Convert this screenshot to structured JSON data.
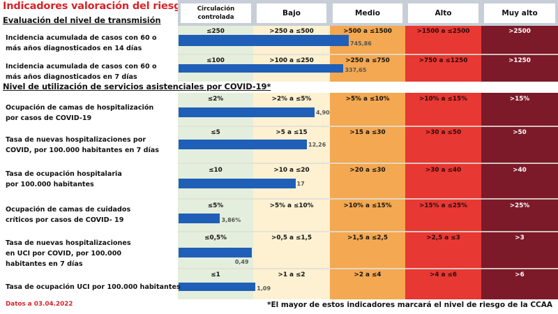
{
  "title": "Indicadores valoración del riesgo",
  "colors": {
    "circulacion": "#e4eedc",
    "bajo": "#fdf1d2",
    "medio": "#f3a851",
    "alto": "#e73833",
    "muy_alto": "#7c1a29",
    "bar": "#1f5fb7",
    "title": "#d8232a"
  },
  "headers": [
    "Circulación controlada",
    "Bajo",
    "Medio",
    "Alto",
    "Muy alto"
  ],
  "sections": [
    {
      "title": "Evaluación del nivel de transmisión"
    },
    {
      "title": "Nivel de utilización de servicios  asistenciales por COVID-19*"
    }
  ],
  "chart_data": {
    "type": "bar",
    "title": "Indicadores valoración del riesgo",
    "levels": [
      "Circulación controlada",
      "Bajo",
      "Medio",
      "Alto",
      "Muy alto"
    ],
    "rows": [
      {
        "section": 0,
        "label": "Incidencia acumulada de casos con 60 o más años diagnosticados en 14 días",
        "thresholds": [
          "≤250",
          ">250 a ≤500",
          ">500 a ≤1500",
          ">1500 a ≤2500",
          ">2500"
        ],
        "value": 745.86,
        "value_label": "745,86",
        "level_fraction": 2.25
      },
      {
        "section": 0,
        "label": "Incidencia acumulada de casos con 60 o más años diagnosticados en 7 días",
        "thresholds": [
          "≤100",
          ">100 a ≤250",
          ">250 a ≤750",
          ">750 a ≤1250",
          ">1250"
        ],
        "value": 337.65,
        "value_label": "337,65",
        "level_fraction": 2.18
      },
      {
        "section": 1,
        "label": "Ocupación de camas de hospitalización por casos de COVID-19",
        "thresholds": [
          "≤2%",
          ">2% a ≤5%",
          ">5% a ≤10%",
          ">10% a ≤15%",
          ">15%"
        ],
        "value": 4.9,
        "value_label": "4,90",
        "level_fraction": 1.8
      },
      {
        "section": 1,
        "label": "Tasa de nuevas hospitalizaciones por COVID, por 100.000 habitantes en 7 días",
        "thresholds": [
          "≤5",
          ">5 a ≤15",
          ">15 a ≤30",
          ">30 a ≤50",
          ">50"
        ],
        "value": 12.26,
        "value_label": "12,26",
        "level_fraction": 1.7
      },
      {
        "section": 1,
        "label": "Tasa de ocupación hospitalaria por 100.000 habitantes",
        "thresholds": [
          "≤10",
          ">10 a ≤20",
          ">20 a ≤30",
          ">30 a ≤40",
          ">40"
        ],
        "value": 17,
        "value_label": "17",
        "level_fraction": 1.55
      },
      {
        "section": 1,
        "label": "Ocupación de camas de cuidados críticos por casos de COVID- 19",
        "thresholds": [
          "≤5%",
          ">5% a ≤10%",
          ">10% a ≤15%",
          ">15% a ≤25%",
          ">25%"
        ],
        "value": 3.86,
        "value_label": "3,86%",
        "level_fraction": 0.56
      },
      {
        "section": 1,
        "label": "Tasa de nuevas hospitalizaciones en UCI por COVID, por 100.000 habitantes en 7 días",
        "thresholds": [
          "≤0,5%",
          ">0,5 a ≤1,5",
          ">1,5 a ≤2,5",
          ">2,5 a ≤3",
          ">3"
        ],
        "value": 0.49,
        "value_label": "0,49",
        "level_fraction": 0.98
      },
      {
        "section": 1,
        "label": "Tasa de ocupación UCI por 100.000 habitantes",
        "thresholds": [
          "≤1",
          ">1 a ≤2",
          ">2 a ≤4",
          ">4 a ≤6",
          ">6"
        ],
        "value": 1.09,
        "value_label": "1,09",
        "level_fraction": 1.03
      }
    ]
  },
  "row_label_lines": [
    [
      "Incidencia acumulada de casos con 60 o",
      "más años diagnosticados en 14 días"
    ],
    [
      "Incidencia acumulada de casos con 60 o",
      "más años diagnosticados en 7 días"
    ],
    [
      "Ocupación de camas de hospitalización",
      "por casos de COVID-19"
    ],
    [
      "Tasa de nuevas hospitalizaciones por",
      "COVID, por 100.000 habitantes en 7 días"
    ],
    [
      "Tasa de ocupación hospitalaria",
      "por 100.000 habitantes"
    ],
    [
      "Ocupación de camas de cuidados",
      "críticos por casos de COVID- 19"
    ],
    [
      "Tasa de nuevas hospitalizaciones",
      "en UCI por COVID, por 100.000",
      "habitantes en 7 días"
    ],
    [
      "Tasa de ocupación UCI por 100.000 habitantes"
    ]
  ],
  "footer": {
    "date": "Datos a 03.04.2022",
    "note": "*El mayor de estos indicadores marcará el nivel de riesgo de la CCAA"
  }
}
